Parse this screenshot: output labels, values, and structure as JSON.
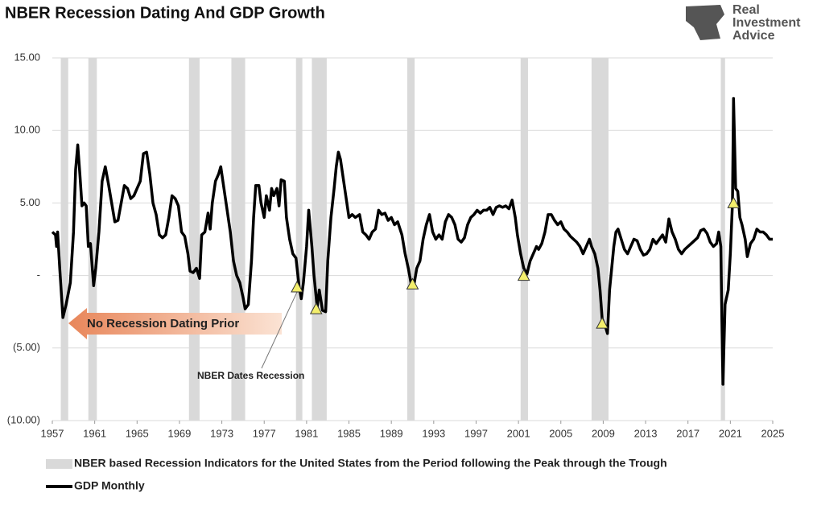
{
  "chart_data": {
    "type": "line",
    "title": "NBER Recession Dating And GDP Growth",
    "logo": [
      "Real",
      "Investment",
      "Advice"
    ],
    "xlim": [
      1957,
      2025
    ],
    "xticks": [
      1957,
      1961,
      1965,
      1969,
      1973,
      1977,
      1981,
      1985,
      1989,
      1993,
      1997,
      2001,
      2005,
      2009,
      2013,
      2017,
      2021,
      2025
    ],
    "ylim": [
      -10,
      15
    ],
    "yticks": [
      {
        "value": 15,
        "label": "15.00"
      },
      {
        "value": 10,
        "label": "10.00"
      },
      {
        "value": 5,
        "label": "5.00"
      },
      {
        "value": 0,
        "label": "-"
      },
      {
        "value": -5,
        "label": "(5.00)"
      },
      {
        "value": -10,
        "label": "(10.00)"
      }
    ],
    "grid": true,
    "recessions": {
      "name": "NBER based Recession Indicators for the United States from the Period following the Peak through the Trough",
      "color": "#d9d9d9",
      "periods": [
        [
          1957.8,
          1958.5
        ],
        [
          1960.4,
          1961.2
        ],
        [
          1969.9,
          1970.9
        ],
        [
          1973.9,
          1975.2
        ],
        [
          1980.0,
          1980.6
        ],
        [
          1981.5,
          1982.9
        ],
        [
          1990.5,
          1991.2
        ],
        [
          2001.2,
          2001.9
        ],
        [
          2007.9,
          2009.5
        ],
        [
          2020.1,
          2020.5
        ]
      ]
    },
    "series": [
      {
        "name": "GDP Monthly",
        "color": "#000000",
        "x": [
          1957.0,
          1957.3,
          1957.4,
          1957.5,
          1957.7,
          1958.0,
          1958.3,
          1958.7,
          1959.0,
          1959.2,
          1959.4,
          1959.6,
          1959.8,
          1960.0,
          1960.2,
          1960.4,
          1960.6,
          1960.9,
          1961.1,
          1961.4,
          1961.7,
          1962.0,
          1962.3,
          1962.6,
          1962.9,
          1963.2,
          1963.5,
          1963.8,
          1964.1,
          1964.4,
          1964.7,
          1965.0,
          1965.3,
          1965.6,
          1965.9,
          1966.2,
          1966.5,
          1966.8,
          1967.1,
          1967.4,
          1967.7,
          1968.0,
          1968.3,
          1968.6,
          1968.9,
          1969.2,
          1969.5,
          1969.8,
          1970.0,
          1970.3,
          1970.6,
          1970.9,
          1971.1,
          1971.4,
          1971.7,
          1971.9,
          1972.1,
          1972.4,
          1972.7,
          1972.9,
          1973.2,
          1973.5,
          1973.8,
          1974.1,
          1974.4,
          1974.7,
          1975.0,
          1975.2,
          1975.5,
          1975.8,
          1976.0,
          1976.2,
          1976.5,
          1976.7,
          1977.0,
          1977.2,
          1977.5,
          1977.7,
          1977.9,
          1978.2,
          1978.4,
          1978.6,
          1978.9,
          1979.1,
          1979.4,
          1979.7,
          1980.0,
          1980.3,
          1980.5,
          1980.7,
          1981.0,
          1981.2,
          1981.5,
          1981.7,
          1982.0,
          1982.2,
          1982.5,
          1982.8,
          1983.0,
          1983.3,
          1983.6,
          1983.8,
          1984.0,
          1984.2,
          1984.5,
          1984.8,
          1985.0,
          1985.3,
          1985.6,
          1986.0,
          1986.3,
          1986.6,
          1986.9,
          1987.2,
          1987.5,
          1987.8,
          1988.1,
          1988.4,
          1988.7,
          1989.0,
          1989.3,
          1989.6,
          1990.0,
          1990.3,
          1990.6,
          1990.9,
          1991.1,
          1991.4,
          1991.7,
          1992.0,
          1992.3,
          1992.6,
          1992.9,
          1993.2,
          1993.5,
          1993.8,
          1994.1,
          1994.4,
          1994.7,
          1995.0,
          1995.3,
          1995.6,
          1995.9,
          1996.2,
          1996.5,
          1996.8,
          1997.1,
          1997.4,
          1997.7,
          1998.0,
          1998.3,
          1998.6,
          1998.9,
          1999.2,
          1999.5,
          1999.8,
          2000.1,
          2000.4,
          2000.7,
          2000.9,
          2001.2,
          2001.5,
          2001.8,
          2002.1,
          2002.4,
          2002.7,
          2002.9,
          2003.2,
          2003.5,
          2003.8,
          2004.1,
          2004.4,
          2004.7,
          2005.0,
          2005.3,
          2005.6,
          2005.9,
          2006.2,
          2006.5,
          2006.8,
          2007.1,
          2007.4,
          2007.7,
          2007.9,
          2008.2,
          2008.5,
          2008.7,
          2008.9,
          2009.2,
          2009.4,
          2009.6,
          2009.8,
          2010.0,
          2010.2,
          2010.4,
          2010.7,
          2011.0,
          2011.3,
          2011.6,
          2011.9,
          2012.2,
          2012.5,
          2012.8,
          2013.1,
          2013.4,
          2013.7,
          2014.0,
          2014.3,
          2014.6,
          2014.9,
          2015.2,
          2015.5,
          2015.8,
          2016.1,
          2016.4,
          2016.7,
          2017.0,
          2017.3,
          2017.6,
          2017.9,
          2018.2,
          2018.5,
          2018.8,
          2019.1,
          2019.4,
          2019.7,
          2019.9,
          2020.1,
          2020.2,
          2020.3,
          2020.5,
          2020.8,
          2021.0,
          2021.2,
          2021.3,
          2021.5,
          2021.7,
          2021.9,
          2022.1,
          2022.4,
          2022.6,
          2022.9,
          2023.2,
          2023.5,
          2023.8,
          2024.1,
          2024.4,
          2024.7,
          2025.0
        ],
        "values": [
          3.0,
          2.8,
          2.0,
          3.0,
          0.5,
          -2.9,
          -2.0,
          -0.5,
          3.0,
          7.3,
          9.0,
          7.0,
          4.8,
          5.0,
          4.8,
          2.0,
          2.2,
          -0.7,
          0.5,
          3.0,
          6.5,
          7.5,
          6.3,
          5.0,
          3.7,
          3.8,
          5.0,
          6.2,
          6.0,
          5.3,
          5.5,
          6.0,
          6.5,
          8.4,
          8.5,
          7.0,
          5.0,
          4.2,
          2.8,
          2.6,
          2.8,
          4.0,
          5.5,
          5.3,
          4.8,
          3.0,
          2.7,
          1.5,
          0.3,
          0.2,
          0.5,
          -0.2,
          2.8,
          3.0,
          4.3,
          3.2,
          5.0,
          6.5,
          7.0,
          7.5,
          6.0,
          4.5,
          3.0,
          1.0,
          0.0,
          -0.5,
          -1.5,
          -2.3,
          -2.0,
          1.0,
          4.0,
          6.2,
          6.2,
          5.0,
          4.0,
          5.5,
          4.5,
          6.0,
          5.5,
          6.0,
          4.8,
          6.6,
          6.5,
          4.0,
          2.5,
          1.5,
          1.2,
          -0.8,
          -1.6,
          -0.5,
          2.0,
          4.5,
          2.0,
          0.0,
          -2.2,
          -1.0,
          -2.4,
          -2.5,
          1.0,
          4.0,
          6.0,
          7.5,
          8.5,
          8.0,
          6.5,
          5.0,
          4.0,
          4.2,
          4.0,
          4.2,
          3.0,
          2.8,
          2.5,
          3.0,
          3.2,
          4.5,
          4.2,
          4.3,
          3.8,
          4.0,
          3.5,
          3.7,
          2.8,
          1.5,
          0.5,
          -0.7,
          -0.8,
          0.5,
          1.0,
          2.5,
          3.5,
          4.2,
          3.0,
          2.5,
          2.8,
          2.5,
          3.7,
          4.2,
          4.0,
          3.5,
          2.5,
          2.3,
          2.6,
          3.5,
          4.0,
          4.2,
          4.5,
          4.3,
          4.5,
          4.5,
          4.7,
          4.2,
          4.7,
          4.8,
          4.7,
          4.8,
          4.6,
          5.2,
          4.0,
          2.8,
          1.5,
          0.5,
          0.1,
          1.0,
          1.5,
          2.0,
          1.8,
          2.2,
          3.0,
          4.2,
          4.2,
          3.8,
          3.5,
          3.7,
          3.2,
          3.0,
          2.7,
          2.5,
          2.3,
          2.0,
          1.5,
          2.0,
          2.5,
          2.0,
          1.5,
          0.5,
          -1.0,
          -3.0,
          -3.5,
          -4.0,
          -1.0,
          0.5,
          2.0,
          3.0,
          3.2,
          2.5,
          1.8,
          1.5,
          2.0,
          2.5,
          2.4,
          1.8,
          1.4,
          1.5,
          1.8,
          2.5,
          2.2,
          2.5,
          2.8,
          2.3,
          3.9,
          3.0,
          2.5,
          1.8,
          1.5,
          1.8,
          2.0,
          2.2,
          2.4,
          2.6,
          3.1,
          3.2,
          2.9,
          2.3,
          2.0,
          2.2,
          3.0,
          2.0,
          -3.0,
          -7.5,
          -2.0,
          -1.0,
          1.5,
          5.0,
          12.2,
          6.0,
          5.8,
          4.0,
          3.5,
          2.5,
          1.3,
          2.2,
          2.5,
          3.2,
          3.0,
          3.0,
          2.8,
          2.5,
          2.5
        ]
      }
    ],
    "markers": {
      "color": "#f3ee6c",
      "x": [
        1980.1,
        1981.9,
        1991.0,
        2001.5,
        2008.9,
        2021.3
      ],
      "values": [
        -0.8,
        -2.3,
        -0.6,
        0.0,
        -3.3,
        5.0
      ]
    },
    "annotations": {
      "arrow_text": "No Recession Dating Prior",
      "callout": "NBER Dates Recession"
    }
  }
}
